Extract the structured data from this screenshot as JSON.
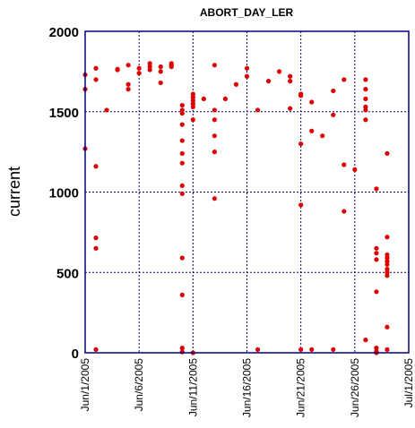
{
  "chart_data": {
    "type": "scatter",
    "title": "ABORT_DAY_LER",
    "ylabel": "current",
    "xlabel": "",
    "xlim": [
      "2005-06-01",
      "2005-07-01"
    ],
    "ylim": [
      0,
      2000
    ],
    "yticks": [
      0,
      500,
      1000,
      1500,
      2000
    ],
    "xticks": [
      "2005-06-01",
      "2005-06-06",
      "2005-06-11",
      "2005-06-16",
      "2005-06-21",
      "2005-06-26",
      "2005-07-01"
    ],
    "xtick_labels": [
      "Jun/1/2005",
      "Jun/6/2005",
      "Jun/11/2005",
      "Jun/16/2005",
      "Jun/21/2005",
      "Jun/26/2005",
      "Jul/1/2005"
    ],
    "grid": true,
    "marker_color": "#dd0000",
    "axis_color": "#000080",
    "series": [
      {
        "points": [
          [
            "2005-06-01T00:00",
            1730
          ],
          [
            "2005-06-01T00:00",
            1640
          ],
          [
            "2005-06-01T00:00",
            1270
          ],
          [
            "2005-06-02T00:00",
            1770
          ],
          [
            "2005-06-02T00:00",
            1700
          ],
          [
            "2005-06-02T00:00",
            1160
          ],
          [
            "2005-06-02T00:00",
            715
          ],
          [
            "2005-06-02T00:00",
            650
          ],
          [
            "2005-06-02T00:00",
            20
          ],
          [
            "2005-06-03T00:00",
            1510
          ],
          [
            "2005-06-04T00:00",
            1760
          ],
          [
            "2005-06-04T00:00",
            1765
          ],
          [
            "2005-06-05T00:00",
            1790
          ],
          [
            "2005-06-05T00:00",
            1670
          ],
          [
            "2005-06-05T00:00",
            1640
          ],
          [
            "2005-06-06T00:00",
            1770
          ],
          [
            "2005-06-06T00:00",
            1740
          ],
          [
            "2005-06-07T00:00",
            1800
          ],
          [
            "2005-06-07T00:00",
            1780
          ],
          [
            "2005-06-07T00:00",
            1760
          ],
          [
            "2005-06-08T00:00",
            1780
          ],
          [
            "2005-06-08T00:00",
            1750
          ],
          [
            "2005-06-08T00:00",
            1680
          ],
          [
            "2005-06-09T00:00",
            1800
          ],
          [
            "2005-06-09T00:00",
            1790
          ],
          [
            "2005-06-09T00:00",
            1780
          ],
          [
            "2005-06-10T00:00",
            1540
          ],
          [
            "2005-06-10T00:00",
            1510
          ],
          [
            "2005-06-10T00:00",
            1490
          ],
          [
            "2005-06-10T00:00",
            1420
          ],
          [
            "2005-06-10T00:00",
            1320
          ],
          [
            "2005-06-10T00:00",
            1240
          ],
          [
            "2005-06-10T00:00",
            1180
          ],
          [
            "2005-06-10T00:00",
            1040
          ],
          [
            "2005-06-10T00:00",
            990
          ],
          [
            "2005-06-10T00:00",
            590
          ],
          [
            "2005-06-10T00:00",
            360
          ],
          [
            "2005-06-10T00:00",
            30
          ],
          [
            "2005-06-10T00:00",
            5
          ],
          [
            "2005-06-11T00:00",
            1610
          ],
          [
            "2005-06-11T00:00",
            1590
          ],
          [
            "2005-06-11T00:00",
            1570
          ],
          [
            "2005-06-11T00:00",
            1550
          ],
          [
            "2005-06-11T00:00",
            1530
          ],
          [
            "2005-06-11T00:00",
            1450
          ],
          [
            "2005-06-11T00:00",
            0
          ],
          [
            "2005-06-12T00:00",
            1580
          ],
          [
            "2005-06-13T00:00",
            1790
          ],
          [
            "2005-06-13T00:00",
            1510
          ],
          [
            "2005-06-13T00:00",
            1450
          ],
          [
            "2005-06-13T00:00",
            1350
          ],
          [
            "2005-06-13T00:00",
            1250
          ],
          [
            "2005-06-13T00:00",
            960
          ],
          [
            "2005-06-14T00:00",
            1580
          ],
          [
            "2005-06-15T00:00",
            1670
          ],
          [
            "2005-06-16T00:00",
            1770
          ],
          [
            "2005-06-16T00:00",
            1720
          ],
          [
            "2005-06-17T00:00",
            1510
          ],
          [
            "2005-06-17T00:00",
            20
          ],
          [
            "2005-06-18T00:00",
            1690
          ],
          [
            "2005-06-19T00:00",
            1750
          ],
          [
            "2005-06-20T00:00",
            1720
          ],
          [
            "2005-06-20T00:00",
            1690
          ],
          [
            "2005-06-20T00:00",
            1520
          ],
          [
            "2005-06-21T00:00",
            1610
          ],
          [
            "2005-06-21T00:00",
            1600
          ],
          [
            "2005-06-21T00:00",
            1300
          ],
          [
            "2005-06-21T00:00",
            920
          ],
          [
            "2005-06-21T00:00",
            20
          ],
          [
            "2005-06-22T00:00",
            1560
          ],
          [
            "2005-06-22T00:00",
            1380
          ],
          [
            "2005-06-22T00:00",
            20
          ],
          [
            "2005-06-23T00:00",
            1350
          ],
          [
            "2005-06-24T00:00",
            1630
          ],
          [
            "2005-06-24T00:00",
            1480
          ],
          [
            "2005-06-24T00:00",
            20
          ],
          [
            "2005-06-25T00:00",
            1700
          ],
          [
            "2005-06-25T00:00",
            1170
          ],
          [
            "2005-06-25T00:00",
            880
          ],
          [
            "2005-06-26T00:00",
            1140
          ],
          [
            "2005-06-27T00:00",
            1700
          ],
          [
            "2005-06-27T00:00",
            1640
          ],
          [
            "2005-06-27T00:00",
            1580
          ],
          [
            "2005-06-27T00:00",
            1530
          ],
          [
            "2005-06-27T00:00",
            1510
          ],
          [
            "2005-06-27T00:00",
            1450
          ],
          [
            "2005-06-27T00:00",
            80
          ],
          [
            "2005-06-28T00:00",
            1020
          ],
          [
            "2005-06-28T00:00",
            650
          ],
          [
            "2005-06-28T00:00",
            620
          ],
          [
            "2005-06-28T00:00",
            580
          ],
          [
            "2005-06-28T00:00",
            380
          ],
          [
            "2005-06-28T00:00",
            30
          ],
          [
            "2005-06-28T00:00",
            10
          ],
          [
            "2005-06-28T00:00",
            0
          ],
          [
            "2005-06-29T00:00",
            1240
          ],
          [
            "2005-06-29T00:00",
            720
          ],
          [
            "2005-06-29T00:00",
            610
          ],
          [
            "2005-06-29T00:00",
            590
          ],
          [
            "2005-06-29T00:00",
            570
          ],
          [
            "2005-06-29T00:00",
            550
          ],
          [
            "2005-06-29T00:00",
            520
          ],
          [
            "2005-06-29T00:00",
            500
          ],
          [
            "2005-06-29T00:00",
            480
          ],
          [
            "2005-06-29T00:00",
            160
          ],
          [
            "2005-06-29T00:00",
            20
          ]
        ]
      }
    ]
  }
}
